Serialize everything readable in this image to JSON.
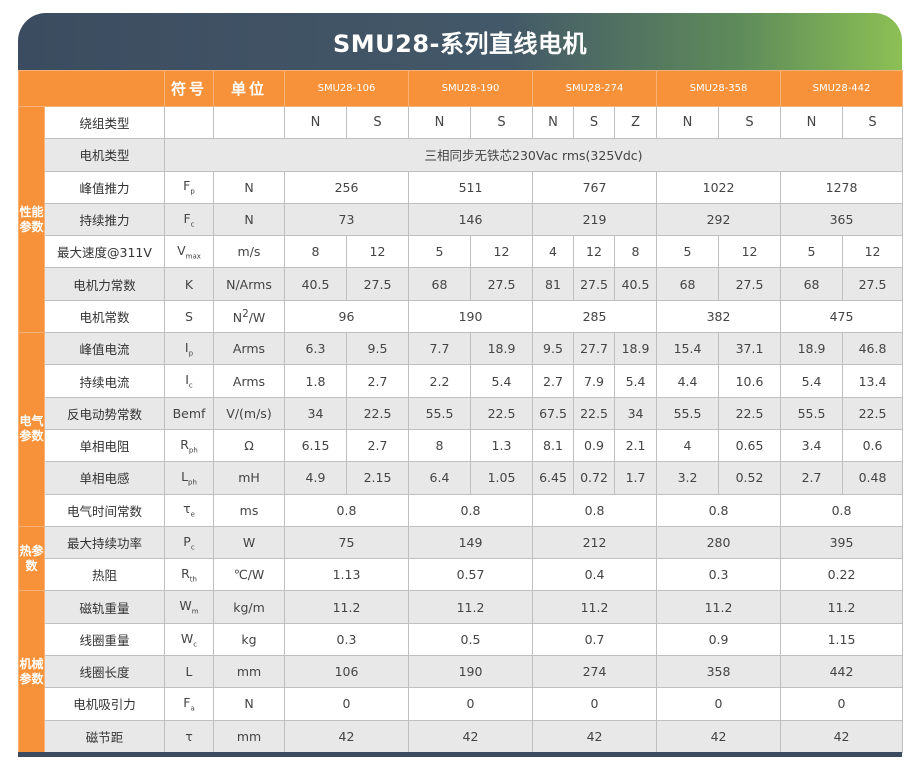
{
  "title": "SMU28-系列直线电机",
  "header": {
    "symbol": "符号",
    "unit": "单位",
    "models": [
      "SMU28-106",
      "SMU28-190",
      "SMU28-274",
      "SMU28-358",
      "SMU28-442"
    ]
  },
  "groups": {
    "perf": "性能参数",
    "elec": "电气参数",
    "thermal": "热参数",
    "mech": "机械参数"
  },
  "rows": {
    "winding": {
      "name": "绕组类型",
      "values": [
        "N",
        "S",
        "N",
        "S",
        "N",
        "S",
        "Z",
        "N",
        "S",
        "N",
        "S"
      ]
    },
    "motor_type": {
      "name": "电机类型",
      "value": "三相同步无铁芯230Vac rms(325Vdc)"
    },
    "peak_force": {
      "name": "峰值推力",
      "sym": "F",
      "sub": "p",
      "unit": "N",
      "values": [
        "256",
        "511",
        "767",
        "1022",
        "1278"
      ]
    },
    "cont_force": {
      "name": "持续推力",
      "sym": "F",
      "sub": "c",
      "unit": "N",
      "values": [
        "73",
        "146",
        "219",
        "292",
        "365"
      ]
    },
    "max_speed": {
      "name": "最大速度@311V",
      "sym": "V",
      "sub": "max",
      "unit": "m/s",
      "values": [
        "8",
        "12",
        "5",
        "12",
        "4",
        "12",
        "8",
        "5",
        "12",
        "5",
        "12"
      ]
    },
    "force_const": {
      "name": "电机力常数",
      "sym": "K",
      "unit": "N/Arms",
      "values": [
        "40.5",
        "27.5",
        "68",
        "27.5",
        "81",
        "27.5",
        "40.5",
        "68",
        "27.5",
        "68",
        "27.5"
      ]
    },
    "motor_const": {
      "name": "电机常数",
      "sym": "S",
      "unit_pre": "N",
      "unit_sup": "2",
      "unit_post": "/W",
      "values": [
        "96",
        "190",
        "285",
        "382",
        "475"
      ]
    },
    "peak_current": {
      "name": "峰值电流",
      "sym": "I",
      "sub": "p",
      "unit": "Arms",
      "values": [
        "6.3",
        "9.5",
        "7.7",
        "18.9",
        "9.5",
        "27.7",
        "18.9",
        "15.4",
        "37.1",
        "18.9",
        "46.8"
      ]
    },
    "cont_current": {
      "name": "持续电流",
      "sym": "I",
      "sub": "c",
      "unit": "Arms",
      "values": [
        "1.8",
        "2.7",
        "2.2",
        "5.4",
        "2.7",
        "7.9",
        "5.4",
        "4.4",
        "10.6",
        "5.4",
        "13.4"
      ]
    },
    "bemf": {
      "name": "反电动势常数",
      "sym": "Bemf",
      "unit": "V/(m/s)",
      "values": [
        "34",
        "22.5",
        "55.5",
        "22.5",
        "67.5",
        "22.5",
        "34",
        "55.5",
        "22.5",
        "55.5",
        "22.5"
      ]
    },
    "resistance": {
      "name": "单相电阻",
      "sym": "R",
      "sub": "ph",
      "unit": "Ω",
      "values": [
        "6.15",
        "2.7",
        "8",
        "1.3",
        "8.1",
        "0.9",
        "2.1",
        "4",
        "0.65",
        "3.4",
        "0.6"
      ]
    },
    "inductance": {
      "name": "单相电感",
      "sym": "L",
      "sub": "ph",
      "unit": "mH",
      "values": [
        "4.9",
        "2.15",
        "6.4",
        "1.05",
        "6.45",
        "0.72",
        "1.7",
        "3.2",
        "0.52",
        "2.7",
        "0.48"
      ]
    },
    "elec_time": {
      "name": "电气时间常数",
      "sym": "τ",
      "sub": "e",
      "unit": "ms",
      "values": [
        "0.8",
        "0.8",
        "0.8",
        "0.8",
        "0.8"
      ]
    },
    "max_power": {
      "name": "最大持续功率",
      "sym": "P",
      "sub": "c",
      "unit": "W",
      "values": [
        "75",
        "149",
        "212",
        "280",
        "395"
      ]
    },
    "thermal_res": {
      "name": "热阻",
      "sym": "R",
      "sub": "th",
      "unit": "℃/W",
      "values": [
        "1.13",
        "0.57",
        "0.4",
        "0.3",
        "0.22"
      ]
    },
    "track_weight": {
      "name": "磁轨重量",
      "sym": "W",
      "sub": "m",
      "unit": "kg/m",
      "values": [
        "11.2",
        "11.2",
        "11.2",
        "11.2",
        "11.2"
      ]
    },
    "coil_weight": {
      "name": "线圈重量",
      "sym": "W",
      "sub": "c",
      "unit": "kg",
      "values": [
        "0.3",
        "0.5",
        "0.7",
        "0.9",
        "1.15"
      ]
    },
    "coil_length": {
      "name": "线圈长度",
      "sym": "L",
      "unit": "mm",
      "values": [
        "106",
        "190",
        "274",
        "358",
        "442"
      ]
    },
    "attraction": {
      "name": "电机吸引力",
      "sym": "F",
      "sub": "a",
      "unit": "N",
      "values": [
        "0",
        "0",
        "0",
        "0",
        "0"
      ]
    },
    "pole_pitch": {
      "name": "磁节距",
      "sym": "τ",
      "unit": "mm",
      "values": [
        "42",
        "42",
        "42",
        "42",
        "42"
      ]
    }
  }
}
